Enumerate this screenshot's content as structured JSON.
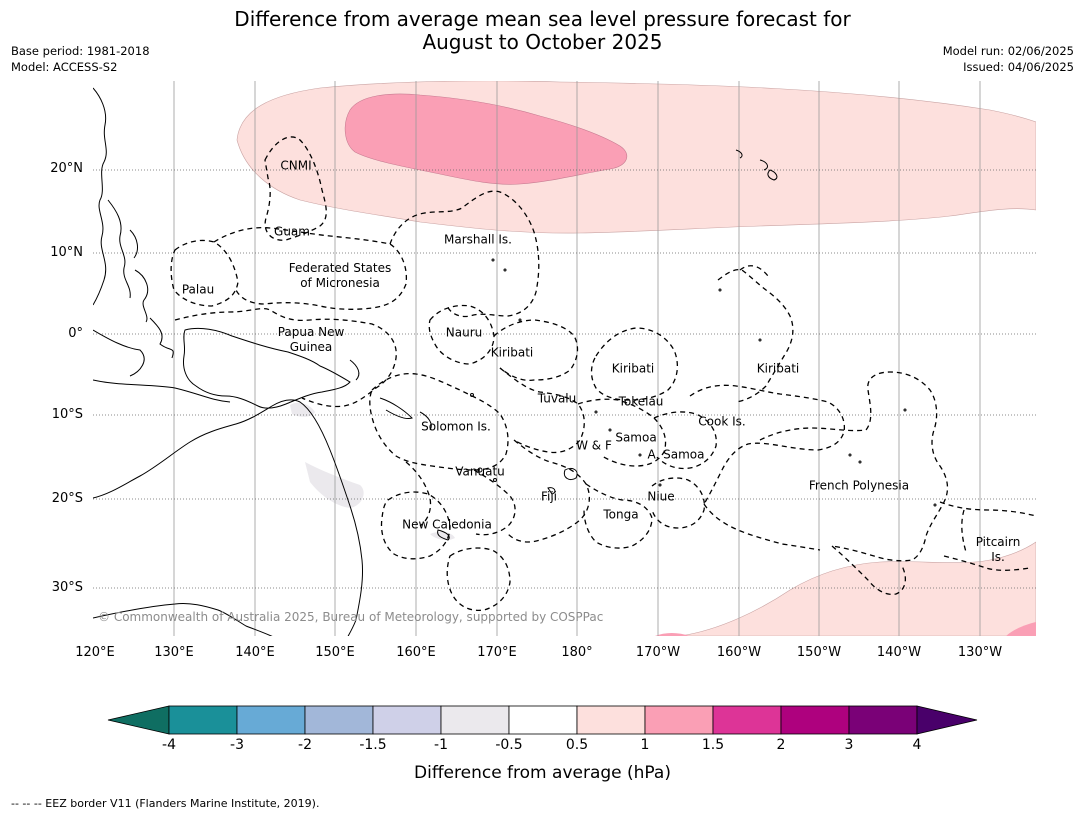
{
  "header": {
    "title_line1": "Difference from average mean sea level pressure forecast for",
    "title_line2": "August to October 2025",
    "base_period": "Base period: 1981-2018",
    "model": "Model: ACCESS-S2",
    "model_run": "Model run: 02/06/2025",
    "issued": "Issued: 04/06/2025"
  },
  "map": {
    "lat_labels": [
      "20°N",
      "10°N",
      "0°",
      "10°S",
      "20°S",
      "30°S"
    ],
    "lon_labels": [
      "120°E",
      "130°E",
      "140°E",
      "150°E",
      "160°E",
      "170°E",
      "180°",
      "170°W",
      "160°W",
      "150°W",
      "140°W",
      "130°W"
    ],
    "copyright": "© Commonwealth of Australia 2025, Bureau of Meteorology, supported by COSPPac",
    "places": {
      "cnmi": "CNMI",
      "guam": "Guam",
      "marshall": "Marshall Is.",
      "fsm_1": "Federated States",
      "fsm_2": "of Micronesia",
      "palau": "Palau",
      "png_1": "Papua New",
      "png_2": "Guinea",
      "nauru": "Nauru",
      "kiribati_w": "Kiribati",
      "kiribati_c": "Kiribati",
      "kiribati_e": "Kiribati",
      "tuvalu": "Tuvalu",
      "tokelau": "Tokelau",
      "cook": "Cook Is.",
      "solomon": "Solomon Is.",
      "samoa": "Samoa",
      "wf": "W & F",
      "asamoa": "A. Samoa",
      "vanuatu": "Vanuatu",
      "fiji": "Fiji",
      "niue": "Niue",
      "tonga": "Tonga",
      "frpoly": "French Polynesia",
      "newcal": "New Caledonia",
      "pitcairn_1": "Pitcairn",
      "pitcairn_2": "Is."
    }
  },
  "colorbar": {
    "ticks": [
      "-4",
      "-3",
      "-2",
      "-1.5",
      "-1",
      "-0.5",
      "0.5",
      "1",
      "1.5",
      "2",
      "3",
      "4"
    ],
    "colors": [
      "#0f6e62",
      "#1a9099",
      "#67aad6",
      "#a2b7d9",
      "#cfd0e8",
      "#ebe9ed",
      "#ffffff",
      "#fde0dd",
      "#fa9fb5",
      "#dd3497",
      "#ae017e",
      "#7a0177",
      "#49006a"
    ],
    "label": "Difference from average (hPa)"
  },
  "footer": {
    "legend": "--  --  -- EEZ border V11 (Flanders Marine Institute, 2019)."
  }
}
